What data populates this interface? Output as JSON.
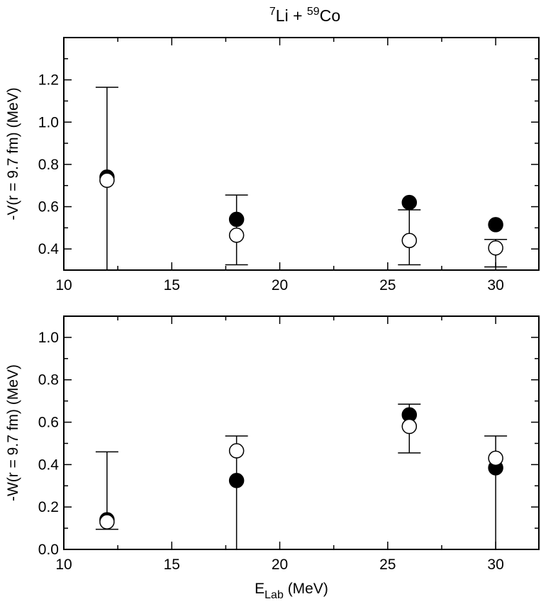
{
  "title": {
    "a_sup": "7",
    "a_text": "Li + ",
    "b_sup": "59",
    "b_text": "Co"
  },
  "chart_data": [
    {
      "type": "scatter",
      "panel": "top",
      "ylabel": "-V(r = 9.7 fm) (MeV)",
      "xlabel": "",
      "xlim": [
        10,
        32
      ],
      "ylim": [
        0.3,
        1.4
      ],
      "xticks": [
        10,
        15,
        20,
        25,
        30
      ],
      "xtick_labels": [
        "10",
        "15",
        "20",
        "25",
        "30"
      ],
      "yticks": [
        0.4,
        0.6,
        0.8,
        1.0,
        1.2
      ],
      "ytick_labels": [
        "0.4",
        "0.6",
        "0.8",
        "1.0",
        "1.2"
      ],
      "series": [
        {
          "style": "filled",
          "x": [
            12,
            18,
            26,
            30
          ],
          "y": [
            0.74,
            0.54,
            0.62,
            0.515
          ]
        },
        {
          "style": "open",
          "x": [
            12,
            18,
            26,
            30
          ],
          "y": [
            0.725,
            0.465,
            0.44,
            0.405
          ],
          "err_low": [
            0.3,
            0.325,
            0.325,
            0.315
          ],
          "err_high": [
            1.165,
            0.655,
            0.585,
            0.445
          ]
        }
      ]
    },
    {
      "type": "scatter",
      "panel": "bottom",
      "ylabel": "-W(r = 9.7 fm) (MeV)",
      "xlabel_main": "E",
      "xlabel_sub": "Lab",
      "xlabel_unit": " (MeV)",
      "xlim": [
        10,
        32
      ],
      "ylim": [
        0.0,
        1.1
      ],
      "xticks": [
        10,
        15,
        20,
        25,
        30
      ],
      "xtick_labels": [
        "10",
        "15",
        "20",
        "25",
        "30"
      ],
      "yticks": [
        0.0,
        0.2,
        0.4,
        0.6,
        0.8,
        1.0
      ],
      "ytick_labels": [
        "0.0",
        "0.2",
        "0.4",
        "0.6",
        "0.8",
        "1.0"
      ],
      "series": [
        {
          "style": "filled",
          "x": [
            12,
            18,
            26,
            30
          ],
          "y": [
            0.14,
            0.325,
            0.635,
            0.385
          ]
        },
        {
          "style": "open",
          "x": [
            12,
            18,
            26,
            30
          ],
          "y": [
            0.13,
            0.465,
            0.58,
            0.43
          ],
          "err_low": [
            0.095,
            0.0,
            0.455,
            0.0
          ],
          "err_high": [
            0.46,
            0.535,
            0.685,
            0.535
          ]
        }
      ]
    }
  ]
}
